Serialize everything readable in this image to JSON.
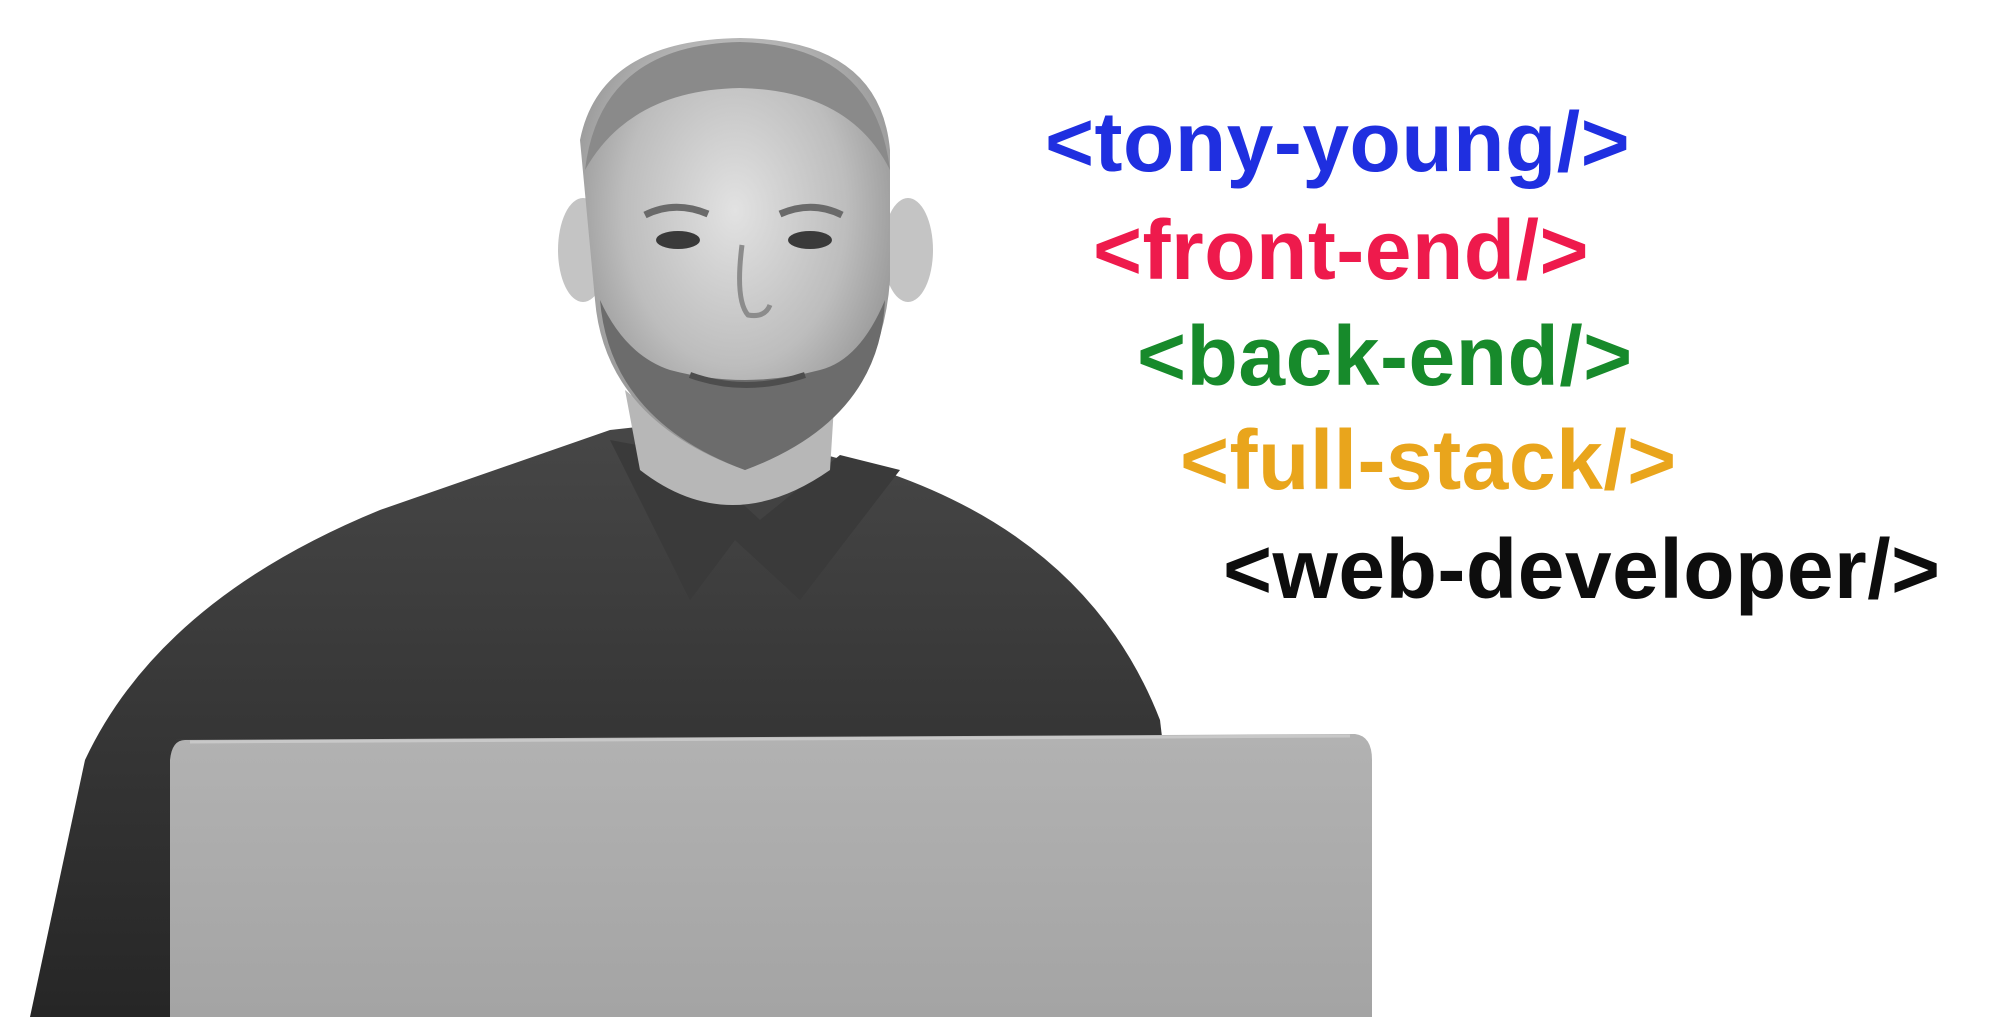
{
  "colors": {
    "background": "#ffffff",
    "blue": "#1f2fe0",
    "crimson": "#ee1a4c",
    "green": "#178a2b",
    "amber": "#e9a51c",
    "black": "#0d0d0d"
  },
  "tags": [
    {
      "text": "<tony-young/>",
      "color": "#1f2fe0"
    },
    {
      "text": "<front-end/>",
      "color": "#ee1a4c"
    },
    {
      "text": "<back-end/>",
      "color": "#178a2b"
    },
    {
      "text": "<full-stack/>",
      "color": "#e9a51c"
    },
    {
      "text": "<web-developer/>",
      "color": "#0d0d0d"
    }
  ]
}
